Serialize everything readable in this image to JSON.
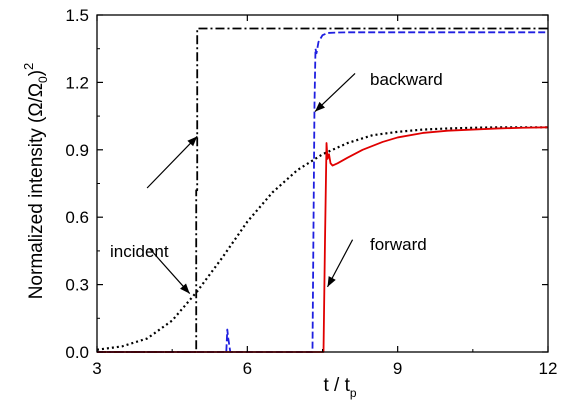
{
  "chart_data": {
    "type": "line",
    "xlabel": {
      "main": "t / t",
      "sub": "p"
    },
    "ylabel": {
      "main": "Normalized intensity (Ω/Ω",
      "sub": "0",
      "tail": ")",
      "sup": "2"
    },
    "xlim": [
      3,
      12
    ],
    "ylim": [
      0,
      1.5
    ],
    "xticks": [
      3,
      6,
      9,
      12
    ],
    "yticks": [
      0.0,
      0.3,
      0.6,
      0.9,
      1.2,
      1.5
    ],
    "xtick_labels": [
      "3",
      "6",
      "9",
      "12"
    ],
    "ytick_labels": [
      "0.0",
      "0.3",
      "0.6",
      "0.9",
      "1.2",
      "1.5"
    ],
    "grid": false,
    "series": [
      {
        "key": "step",
        "color": "#000000",
        "dash": "dashdot",
        "x": [
          3,
          4.98,
          4.98,
          5.0,
          5.0,
          12
        ],
        "y": [
          0,
          0,
          0.72,
          0.72,
          1.44,
          1.44
        ]
      },
      {
        "key": "incident",
        "color": "#000000",
        "dash": "dotted",
        "x": [
          3,
          3.5,
          4.0,
          4.5,
          5.0,
          5.5,
          6.0,
          6.5,
          7.0,
          7.5,
          8.0,
          8.5,
          9.0,
          9.5,
          10,
          10.5,
          11,
          11.5,
          12
        ],
        "y": [
          0.01,
          0.025,
          0.06,
          0.14,
          0.27,
          0.42,
          0.58,
          0.71,
          0.81,
          0.88,
          0.93,
          0.965,
          0.98,
          0.99,
          0.995,
          0.998,
          1.0,
          1.0,
          1.0
        ]
      },
      {
        "key": "backward",
        "color": "#1f1fe0",
        "dash": "dashed",
        "x": [
          3,
          5.58,
          5.6,
          5.62,
          5.66,
          7.3,
          7.34,
          7.36,
          7.38,
          7.42,
          7.5,
          7.6,
          7.8,
          8.0,
          8.5,
          9.0,
          10,
          11,
          12
        ],
        "y": [
          0,
          0,
          0.1,
          0.06,
          0,
          0,
          1.1,
          1.35,
          1.33,
          1.38,
          1.41,
          1.42,
          1.422,
          1.423,
          1.423,
          1.423,
          1.423,
          1.423,
          1.423
        ]
      },
      {
        "key": "forward",
        "color": "#e00000",
        "dash": "solid",
        "x": [
          3,
          7.52,
          7.55,
          7.58,
          7.6,
          7.63,
          7.66,
          7.7,
          7.8,
          8.0,
          8.3,
          8.7,
          9.0,
          9.5,
          10,
          10.5,
          11,
          11.5,
          12
        ],
        "y": [
          0,
          0,
          0.5,
          0.93,
          0.86,
          0.88,
          0.84,
          0.83,
          0.84,
          0.865,
          0.9,
          0.935,
          0.955,
          0.975,
          0.985,
          0.99,
          0.995,
          0.998,
          1.0
        ]
      }
    ],
    "annotations": [
      {
        "text": "incident",
        "key": "incident",
        "arrows": [
          {
            "from": [
              4.0,
              0.73
            ],
            "to": [
              5.0,
              0.96
            ]
          },
          {
            "from": [
              4.05,
              0.46
            ],
            "to": [
              4.85,
              0.26
            ]
          }
        ]
      },
      {
        "text": "backward",
        "key": "backward",
        "arrows": [
          {
            "from": [
              8.15,
              1.24
            ],
            "to": [
              7.35,
              1.07
            ]
          }
        ]
      },
      {
        "text": "forward",
        "key": "forward",
        "arrows": [
          {
            "from": [
              8.1,
              0.5
            ],
            "to": [
              7.6,
              0.29
            ]
          }
        ]
      }
    ]
  }
}
